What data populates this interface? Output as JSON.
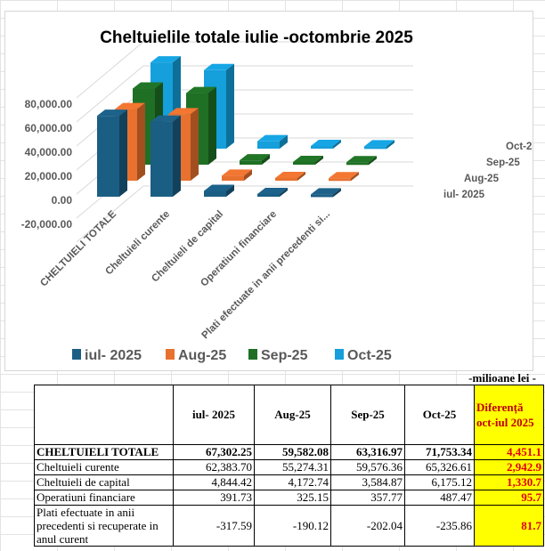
{
  "chart_data": {
    "type": "bar",
    "subtype": "3d-clustered-column",
    "title": "Cheltuielile totale iulie -octombrie 2025",
    "categories": [
      "CHELTUIELI TOTALE",
      "Cheltuieli curente",
      "Cheltuieli de capital",
      "Operatiuni financiare",
      "Plati efectuate in anii precedenti si..."
    ],
    "series": [
      {
        "name": "iul- 2025",
        "color": "#1b5e84",
        "values": [
          67302.25,
          62383.7,
          4844.42,
          391.73,
          -317.59
        ]
      },
      {
        "name": "Aug-25",
        "color": "#e8712f",
        "values": [
          59582.08,
          55274.31,
          4172.74,
          325.15,
          -190.12
        ]
      },
      {
        "name": "Sep-25",
        "color": "#1f7025",
        "values": [
          63316.97,
          59576.36,
          3584.87,
          357.77,
          -202.04
        ]
      },
      {
        "name": "Oct-25",
        "color": "#159fdb",
        "values": [
          71753.34,
          65326.61,
          6175.12,
          487.47,
          -235.86
        ]
      }
    ],
    "yticks": [
      "-20,000.00",
      "0.00",
      "20,000.00",
      "40,000.00",
      "60,000.00",
      "80,000.00"
    ],
    "ylim": [
      -20000,
      80000
    ],
    "legend": "bottom"
  },
  "table": {
    "unit": "-milioane lei -",
    "headers": [
      "",
      "iul- 2025",
      "Aug-25",
      "Sep-25",
      "Oct-25"
    ],
    "diff_header": [
      "Diferență",
      "oct-iul 2025"
    ],
    "rows": [
      {
        "label": "CHELTUIELI TOTALE",
        "v": [
          "67,302.25",
          "59,582.08",
          "63,316.97",
          "71,753.34"
        ],
        "diff": "4,451.1"
      },
      {
        "label": "Cheltuieli curente",
        "v": [
          "62,383.70",
          "55,274.31",
          "59,576.36",
          "65,326.61"
        ],
        "diff": "2,942.9"
      },
      {
        "label": "Cheltuieli de capital",
        "v": [
          "4,844.42",
          "4,172.74",
          "3,584.87",
          "6,175.12"
        ],
        "diff": "1,330.7"
      },
      {
        "label": "Operatiuni financiare",
        "v": [
          "391.73",
          "325.15",
          "357.77",
          "487.47"
        ],
        "diff": "95.7"
      },
      {
        "label": "Plati efectuate in anii precedenti si recuperate in anul curent",
        "v": [
          "-317.59",
          "-190.12",
          "-202.04",
          "-235.86"
        ],
        "diff": "81.7"
      }
    ]
  }
}
